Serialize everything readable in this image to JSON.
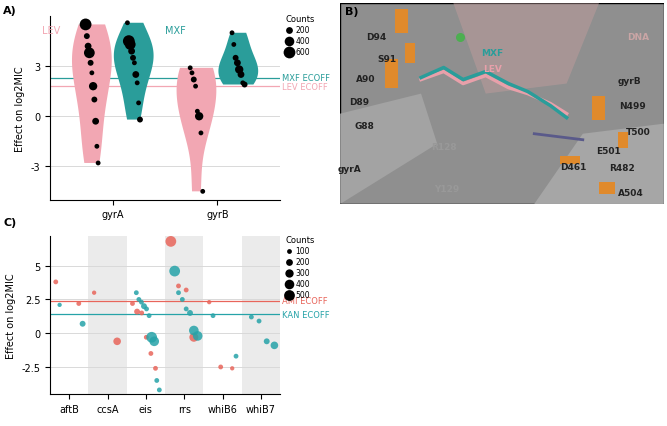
{
  "chart_data": [
    {
      "panel": "A)",
      "type": "violin",
      "ylabel": "Effect on log2MIC",
      "categories": [
        "gyrA",
        "gyrB"
      ],
      "ylim": [
        -5,
        6
      ],
      "yticks": [
        -3,
        0,
        3
      ],
      "grid": true,
      "series": [
        {
          "name": "LEV",
          "color": "#f2a7b3",
          "values": [
            [
              5.5,
              4.8,
              4.2,
              3.8,
              3.2,
              2.6,
              1.8,
              1.0,
              -0.3,
              -1.8,
              -2.8
            ],
            [
              2.9,
              2.6,
              2.2,
              1.8,
              0.3,
              0.0,
              -1.0,
              -4.5
            ]
          ],
          "counts": [
            [
              600,
              150,
              200,
              500,
              150,
              100,
              300,
              150,
              200,
              100,
              100
            ],
            [
              100,
              100,
              150,
              100,
              100,
              300,
              100,
              100
            ]
          ]
        },
        {
          "name": "MXF",
          "color": "#2a9d9a",
          "values": [
            [
              5.6,
              4.5,
              4.3,
              3.9,
              3.5,
              3.2,
              2.5,
              2.0,
              0.8,
              -0.2
            ],
            [
              5.0,
              4.3,
              3.5,
              3.2,
              2.8,
              2.5,
              2.0,
              1.9
            ]
          ],
          "counts": [
            [
              100,
              600,
              500,
              200,
              150,
              100,
              200,
              100,
              100,
              150
            ],
            [
              100,
              100,
              150,
              200,
              300,
              200,
              100,
              150
            ]
          ]
        }
      ],
      "reference_lines": [
        {
          "name": "MXF ECOFF",
          "value": 2.3,
          "color": "#2a9d9a"
        },
        {
          "name": "LEV ECOFF",
          "value": 1.8,
          "color": "#f2a7b3"
        }
      ],
      "size_legend": {
        "title": "Counts",
        "values": [
          200,
          400,
          600
        ]
      }
    },
    {
      "panel": "C)",
      "type": "scatter",
      "ylabel": "Effect on log2MIC",
      "categories": [
        "aftB",
        "ccsA",
        "eis",
        "rrs",
        "whiB6",
        "whiB7"
      ],
      "ylim": [
        -4.5,
        7.2
      ],
      "yticks": [
        -2.5,
        0,
        2.5,
        5
      ],
      "grid": true,
      "series": [
        {
          "name": "AMI",
          "color": "#e8655b",
          "values": [
            [
              3.8,
              2.2
            ],
            [
              3.0,
              -0.6
            ],
            [
              2.2,
              1.6,
              1.5,
              -0.3,
              -1.5,
              -2.6
            ],
            [
              6.8,
              3.5,
              3.2,
              -0.3
            ],
            [
              2.3,
              -2.5,
              -2.6
            ],
            []
          ],
          "counts": [
            [
              100,
              100
            ],
            [
              80,
              250
            ],
            [
              100,
              150,
              100,
              100,
              100,
              100
            ],
            [
              500,
              100,
              100,
              350
            ],
            [
              80,
              100,
              80
            ],
            []
          ]
        },
        {
          "name": "KAN",
          "color": "#26a3a8",
          "values": [
            [
              2.1,
              0.7
            ],
            [],
            [
              3.0,
              2.5,
              2.3,
              2.0,
              1.8,
              1.3,
              -0.3,
              -0.6,
              -3.5,
              -4.2
            ],
            [
              4.6,
              3.0,
              2.5,
              1.8,
              1.5,
              0.2,
              -0.2
            ],
            [
              1.3,
              -1.7
            ],
            [
              1.2,
              0.9,
              -0.6,
              -0.9
            ]
          ],
          "counts": [
            [
              80,
              150
            ],
            [],
            [
              100,
              100,
              100,
              150,
              100,
              100,
              500,
              400,
              100,
              100
            ],
            [
              500,
              100,
              100,
              100,
              150,
              400,
              400
            ],
            [
              100,
              100
            ],
            [
              100,
              100,
              150,
              250
            ]
          ]
        }
      ],
      "reference_lines": [
        {
          "name": "AMI ECOFF",
          "value": 2.4,
          "color": "#e8655b"
        },
        {
          "name": "KAN ECOFF",
          "value": 1.4,
          "color": "#26a3a8"
        }
      ],
      "size_legend": {
        "title": "Counts",
        "values": [
          100,
          200,
          300,
          400,
          500
        ]
      }
    }
  ],
  "structure_panel": {
    "panel": "B)",
    "labels": [
      {
        "text": "D94",
        "color": "#222222"
      },
      {
        "text": "S91",
        "color": "#222222"
      },
      {
        "text": "A90",
        "color": "#222222"
      },
      {
        "text": "D89",
        "color": "#222222"
      },
      {
        "text": "G88",
        "color": "#222222"
      },
      {
        "text": "gyrA",
        "color": "#222222"
      },
      {
        "text": "R128",
        "color": "#999999"
      },
      {
        "text": "Y129",
        "color": "#999999"
      },
      {
        "text": "DNA",
        "color": "#c9a5a5"
      },
      {
        "text": "LEV",
        "color": "#e8a0aa"
      },
      {
        "text": "MXF",
        "color": "#2a9d9a"
      },
      {
        "text": "gyrB",
        "color": "#222222"
      },
      {
        "text": "N499",
        "color": "#222222"
      },
      {
        "text": "T500",
        "color": "#222222"
      },
      {
        "text": "E501",
        "color": "#222222"
      },
      {
        "text": "R482",
        "color": "#222222"
      },
      {
        "text": "D461",
        "color": "#222222"
      },
      {
        "text": "A504",
        "color": "#222222"
      }
    ]
  }
}
